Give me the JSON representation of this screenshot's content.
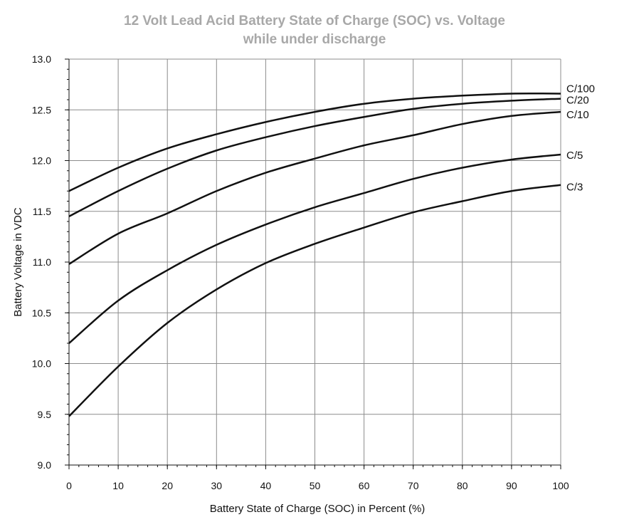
{
  "chart_data": {
    "type": "line",
    "title": "12 Volt Lead Acid Battery State of Charge (SOC) vs. Voltage",
    "subtitle": "while under discharge",
    "xlabel": "Battery State of Charge (SOC) in Percent (%)",
    "ylabel": "Battery Voltage in VDC",
    "xlim": [
      0,
      100
    ],
    "ylim": [
      9.0,
      13.0
    ],
    "x_ticks": [
      0,
      10,
      20,
      30,
      40,
      50,
      60,
      70,
      80,
      90,
      100
    ],
    "y_ticks": [
      9.0,
      9.5,
      10.0,
      10.5,
      11.0,
      11.5,
      12.0,
      12.5,
      13.0
    ],
    "grid": true,
    "x": [
      0,
      10,
      20,
      30,
      40,
      50,
      60,
      70,
      80,
      90,
      100
    ],
    "series": [
      {
        "name": "C/100",
        "values": [
          11.7,
          11.93,
          12.12,
          12.26,
          12.38,
          12.48,
          12.56,
          12.61,
          12.64,
          12.66,
          12.66
        ]
      },
      {
        "name": "C/20",
        "values": [
          11.45,
          11.7,
          11.92,
          12.1,
          12.23,
          12.34,
          12.43,
          12.51,
          12.56,
          12.59,
          12.61
        ]
      },
      {
        "name": "C/10",
        "values": [
          10.98,
          11.28,
          11.48,
          11.7,
          11.88,
          12.02,
          12.15,
          12.25,
          12.36,
          12.44,
          12.48
        ]
      },
      {
        "name": "C/5",
        "values": [
          10.2,
          10.62,
          10.92,
          11.17,
          11.37,
          11.54,
          11.68,
          11.82,
          11.93,
          12.01,
          12.06
        ]
      },
      {
        "name": "C/3",
        "values": [
          9.48,
          9.97,
          10.4,
          10.73,
          10.99,
          11.18,
          11.34,
          11.49,
          11.6,
          11.7,
          11.76
        ]
      }
    ]
  }
}
